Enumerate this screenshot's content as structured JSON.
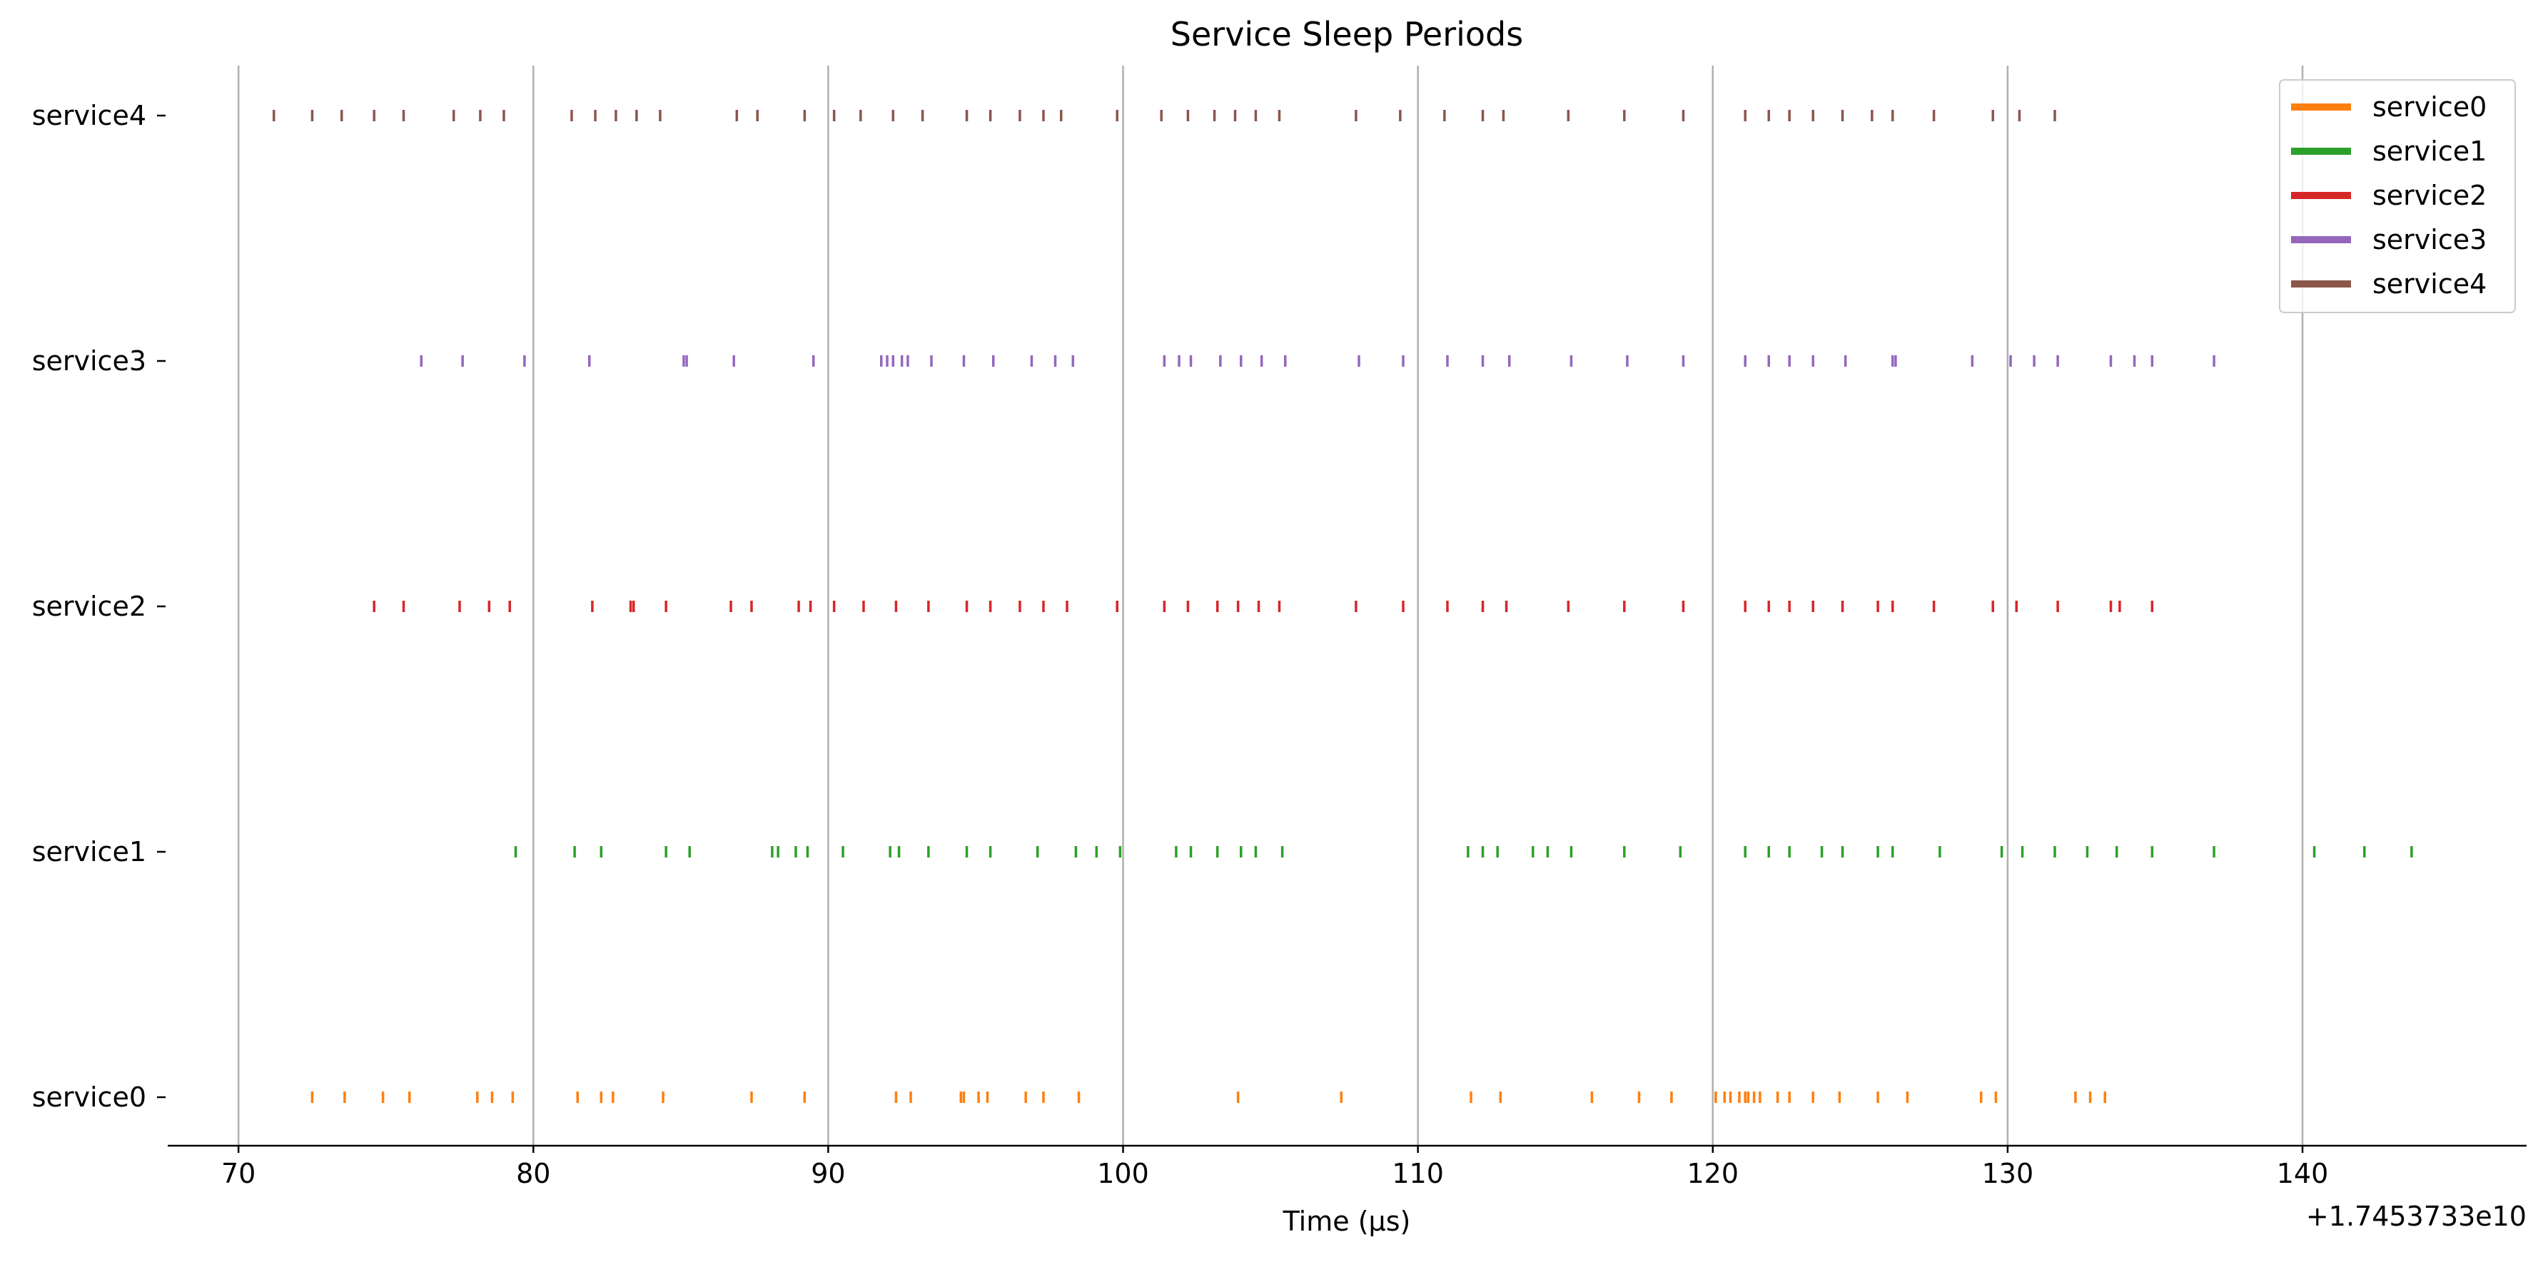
{
  "chart_data": {
    "type": "event",
    "title": "Service Sleep Periods",
    "xlabel": "Time (µs)",
    "ylabel": "",
    "x_offset_label": "+1.7453733e10",
    "xlim": [
      67.6,
      147.6
    ],
    "x_ticks": [
      70,
      80,
      90,
      100,
      110,
      120,
      130,
      140
    ],
    "x_tick_labels": [
      "70",
      "80",
      "90",
      "100",
      "110",
      "120",
      "130",
      "140"
    ],
    "grid": "vertical",
    "legend_position": "top-right",
    "series": [
      {
        "name": "service0",
        "color": "#ff7f0e",
        "events": [
          72.5,
          73.6,
          74.9,
          75.8,
          78.1,
          78.6,
          79.3,
          81.5,
          82.3,
          82.7,
          84.4,
          87.4,
          89.2,
          92.3,
          92.8,
          94.5,
          94.6,
          95.1,
          95.4,
          96.7,
          97.3,
          98.5,
          103.9,
          107.4,
          111.8,
          112.8,
          115.9,
          117.5,
          118.6,
          120.1,
          120.4,
          120.6,
          120.9,
          121.1,
          121.2,
          121.4,
          121.6,
          122.2,
          122.6,
          123.4,
          124.3,
          125.6,
          126.6,
          129.1,
          129.6,
          132.3,
          132.8,
          133.3
        ]
      },
      {
        "name": "service1",
        "color": "#2ca02c",
        "events": [
          79.4,
          81.4,
          82.3,
          84.5,
          85.3,
          88.1,
          88.3,
          88.9,
          89.3,
          90.5,
          92.1,
          92.4,
          93.4,
          94.7,
          95.5,
          97.1,
          98.4,
          99.1,
          99.9,
          101.8,
          102.3,
          103.2,
          104.0,
          104.5,
          105.4,
          111.7,
          112.2,
          112.7,
          113.9,
          114.4,
          115.2,
          117.0,
          118.9,
          121.1,
          121.9,
          122.6,
          123.7,
          124.4,
          125.6,
          126.1,
          127.7,
          129.8,
          130.5,
          131.6,
          132.7,
          133.7,
          134.9,
          137.0,
          140.4,
          142.1,
          143.7
        ]
      },
      {
        "name": "service2",
        "color": "#d62728",
        "events": [
          74.6,
          75.6,
          77.5,
          78.5,
          79.2,
          82.0,
          83.3,
          83.4,
          84.5,
          86.7,
          87.4,
          89.0,
          89.4,
          90.2,
          91.2,
          92.3,
          93.4,
          94.7,
          95.5,
          96.5,
          97.3,
          98.1,
          99.8,
          101.4,
          102.2,
          103.2,
          103.9,
          104.6,
          105.3,
          107.9,
          109.5,
          111.0,
          112.2,
          113.0,
          115.1,
          117.0,
          119.0,
          121.1,
          121.9,
          122.6,
          123.4,
          124.4,
          125.6,
          126.1,
          127.5,
          129.5,
          130.3,
          131.7,
          133.5,
          133.8,
          134.9
        ]
      },
      {
        "name": "service3",
        "color": "#9467bd",
        "events": [
          76.2,
          77.6,
          79.7,
          81.9,
          85.1,
          85.2,
          86.8,
          89.5,
          91.8,
          92.0,
          92.2,
          92.5,
          92.7,
          93.5,
          94.6,
          95.6,
          96.9,
          97.7,
          98.3,
          101.4,
          101.9,
          102.3,
          103.3,
          104.0,
          104.7,
          105.5,
          108.0,
          109.5,
          111.0,
          112.2,
          113.1,
          115.2,
          117.1,
          119.0,
          121.1,
          121.9,
          122.6,
          123.4,
          124.5,
          126.1,
          126.2,
          128.8,
          130.1,
          130.9,
          131.7,
          133.5,
          134.3,
          134.9,
          137.0
        ]
      },
      {
        "name": "service4",
        "color": "#8c564b",
        "events": [
          71.2,
          72.5,
          73.5,
          74.6,
          75.6,
          77.3,
          78.2,
          79.0,
          81.3,
          82.1,
          82.8,
          83.5,
          84.3,
          86.9,
          87.6,
          89.2,
          90.2,
          91.1,
          92.2,
          93.2,
          94.7,
          95.5,
          96.5,
          97.3,
          97.9,
          99.8,
          101.3,
          102.2,
          103.1,
          103.8,
          104.5,
          105.3,
          107.9,
          109.4,
          110.9,
          112.2,
          112.9,
          115.1,
          117.0,
          119.0,
          121.1,
          121.9,
          122.6,
          123.4,
          124.4,
          125.4,
          126.1,
          127.5,
          129.5,
          130.4,
          131.6
        ]
      }
    ]
  }
}
